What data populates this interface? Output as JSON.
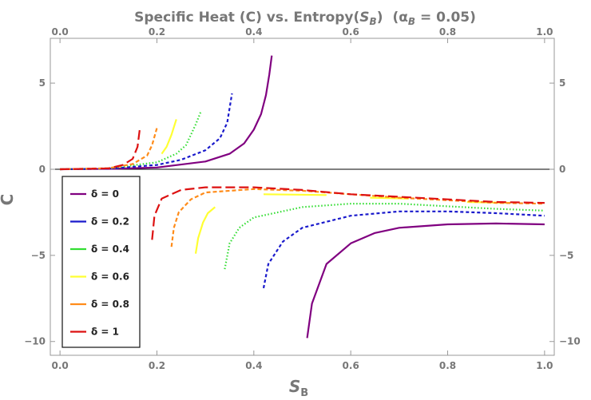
{
  "chart_data": {
    "type": "line",
    "title_main": "Specific Heat (C) vs. Entropy(",
    "title_var": "S",
    "title_sub": "B",
    "title_close": ")",
    "title_param": "(α",
    "title_param_sub": "B",
    "title_param_value": " = 0.05)",
    "xlabel": "S",
    "xlabel_sub": "B",
    "ylabel": "C",
    "xlim": [
      -0.02,
      1.02
    ],
    "ylim": [
      -10.8,
      7.6
    ],
    "x_ticks": [
      0.0,
      0.2,
      0.4,
      0.6,
      0.8,
      1.0
    ],
    "x_tick_labels": [
      "0.0",
      "0.2",
      "0.4",
      "0.6",
      "0.8",
      "1.0"
    ],
    "y_ticks": [
      -10,
      -5,
      0,
      5
    ],
    "y_tick_labels": [
      "−10",
      "−5",
      "0",
      "5"
    ],
    "legend_position": "bottom-left",
    "series": [
      {
        "name": "δ = 0",
        "color": "#800080",
        "dash": "solid",
        "segments": [
          [
            [
              0.0,
              0.0
            ],
            [
              0.1,
              0.02
            ],
            [
              0.2,
              0.1
            ],
            [
              0.3,
              0.45
            ],
            [
              0.35,
              0.9
            ],
            [
              0.38,
              1.5
            ],
            [
              0.4,
              2.3
            ],
            [
              0.415,
              3.2
            ],
            [
              0.425,
              4.3
            ],
            [
              0.432,
              5.5
            ],
            [
              0.437,
              6.6
            ]
          ],
          [
            [
              0.51,
              -9.8
            ],
            [
              0.52,
              -7.8
            ],
            [
              0.55,
              -5.5
            ],
            [
              0.6,
              -4.3
            ],
            [
              0.65,
              -3.7
            ],
            [
              0.7,
              -3.4
            ],
            [
              0.8,
              -3.2
            ],
            [
              0.9,
              -3.15
            ],
            [
              1.0,
              -3.2
            ]
          ]
        ]
      },
      {
        "name": "δ = 0.2",
        "color": "#1a1acc",
        "dash": "4,3",
        "segments": [
          [
            [
              0.0,
              0.0
            ],
            [
              0.1,
              0.03
            ],
            [
              0.2,
              0.25
            ],
            [
              0.25,
              0.55
            ],
            [
              0.3,
              1.1
            ],
            [
              0.33,
              1.8
            ],
            [
              0.345,
              2.7
            ],
            [
              0.355,
              4.4
            ]
          ],
          [
            [
              0.42,
              -6.9
            ],
            [
              0.43,
              -5.5
            ],
            [
              0.46,
              -4.2
            ],
            [
              0.5,
              -3.4
            ],
            [
              0.6,
              -2.7
            ],
            [
              0.7,
              -2.45
            ],
            [
              0.8,
              -2.45
            ],
            [
              0.9,
              -2.55
            ],
            [
              1.0,
              -2.7
            ]
          ]
        ]
      },
      {
        "name": "δ = 0.4",
        "color": "#33dd33",
        "dash": "1.5,2.5",
        "segments": [
          [
            [
              0.0,
              0.0
            ],
            [
              0.1,
              0.05
            ],
            [
              0.2,
              0.4
            ],
            [
              0.24,
              0.9
            ],
            [
              0.26,
              1.4
            ],
            [
              0.27,
              2.0
            ],
            [
              0.28,
              2.6
            ],
            [
              0.29,
              3.3
            ]
          ],
          [
            [
              0.34,
              -5.8
            ],
            [
              0.35,
              -4.3
            ],
            [
              0.37,
              -3.4
            ],
            [
              0.4,
              -2.8
            ],
            [
              0.5,
              -2.2
            ],
            [
              0.6,
              -2.0
            ],
            [
              0.7,
              -2.0
            ],
            [
              0.8,
              -2.15
            ],
            [
              0.9,
              -2.3
            ],
            [
              1.0,
              -2.4
            ]
          ]
        ]
      },
      {
        "name": "δ = 0.6",
        "color": "#ffff33",
        "dash": "solid",
        "segments": [
          [
            [
              0.21,
              0.9
            ],
            [
              0.22,
              1.3
            ],
            [
              0.23,
              2.0
            ],
            [
              0.24,
              2.9
            ]
          ],
          [
            [
              0.28,
              -4.9
            ],
            [
              0.285,
              -4.0
            ],
            [
              0.295,
              -3.1
            ],
            [
              0.305,
              -2.55
            ],
            [
              0.32,
              -2.2
            ]
          ],
          [
            [
              0.42,
              -1.45
            ],
            [
              0.55,
              -1.5
            ]
          ],
          [
            [
              0.64,
              -1.65
            ],
            [
              0.72,
              -1.7
            ]
          ],
          [
            [
              0.84,
              -1.9
            ],
            [
              0.93,
              -1.95
            ]
          ]
        ]
      },
      {
        "name": "δ = 0.8",
        "color": "#ff8c1a",
        "dash": "5,3",
        "segments": [
          [
            [
              0.0,
              0.0
            ],
            [
              0.1,
              0.06
            ],
            [
              0.15,
              0.3
            ],
            [
              0.18,
              0.8
            ],
            [
              0.19,
              1.4
            ],
            [
              0.2,
              2.4
            ]
          ],
          [
            [
              0.23,
              -4.5
            ],
            [
              0.235,
              -3.4
            ],
            [
              0.245,
              -2.5
            ],
            [
              0.27,
              -1.75
            ],
            [
              0.3,
              -1.35
            ],
            [
              0.4,
              -1.15
            ],
            [
              0.5,
              -1.25
            ],
            [
              0.6,
              -1.45
            ],
            [
              0.7,
              -1.65
            ],
            [
              0.8,
              -1.8
            ],
            [
              0.9,
              -1.95
            ],
            [
              1.0,
              -2.0
            ]
          ]
        ]
      },
      {
        "name": "δ = 1",
        "color": "#dd1111",
        "dash": "12,5",
        "segments": [
          [
            [
              0.0,
              0.0
            ],
            [
              0.1,
              0.05
            ],
            [
              0.13,
              0.25
            ],
            [
              0.15,
              0.6
            ],
            [
              0.16,
              1.3
            ],
            [
              0.165,
              2.4
            ]
          ],
          [
            [
              0.19,
              -4.1
            ],
            [
              0.195,
              -2.7
            ],
            [
              0.21,
              -1.7
            ],
            [
              0.25,
              -1.2
            ],
            [
              0.3,
              -1.05
            ],
            [
              0.4,
              -1.05
            ],
            [
              0.5,
              -1.2
            ],
            [
              0.6,
              -1.45
            ],
            [
              0.7,
              -1.6
            ],
            [
              0.8,
              -1.75
            ],
            [
              0.9,
              -1.9
            ],
            [
              1.0,
              -1.95
            ]
          ]
        ]
      }
    ]
  }
}
